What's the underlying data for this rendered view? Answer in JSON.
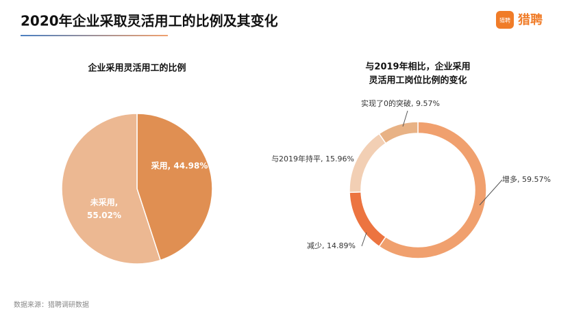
{
  "title": "2020年企业采取灵活用工的比例及其变化",
  "logo": "猎聘",
  "source": "数据来源：猎聘调研数据",
  "chart_data": [
    {
      "type": "pie",
      "title": [
        "企业采用灵活用工的比例"
      ],
      "values": [
        44.98,
        55.02
      ],
      "value_labels": [
        "采用, 44.98%",
        "未采用, 55.02%"
      ],
      "colors": [
        "#e08f52",
        "#ecb892"
      ]
    },
    {
      "type": "donut",
      "title": [
        "与2019年相比，企业采用",
        "灵活用工岗位比例的变化"
      ],
      "values": [
        59.57,
        14.89,
        15.96,
        9.57
      ],
      "value_labels": [
        "增多, 59.57%",
        "减少, 14.89%",
        "与2019年持平, 15.96%",
        "实现了0的突破, 9.57%"
      ],
      "colors": [
        "#f0a06e",
        "#ec7440",
        "#f2cfb4",
        "#e8b285"
      ]
    }
  ]
}
